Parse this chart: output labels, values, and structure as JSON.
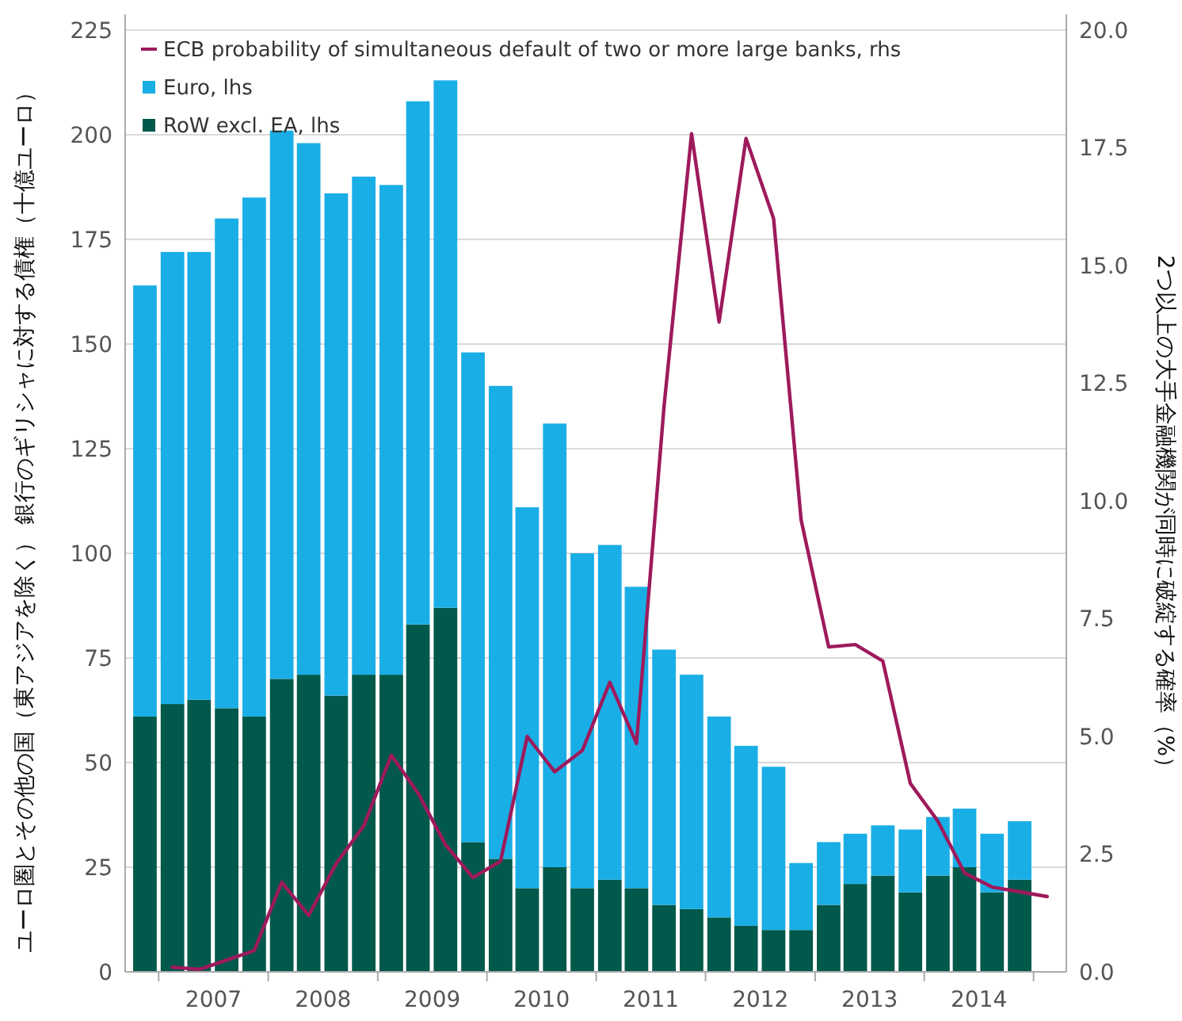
{
  "chart_data": {
    "type": "bar",
    "stacked": true,
    "ylabel": "ユーロ圏とその他の国（東アジアを除く） 銀行のギリシャに対する債権（十億ユーロ）",
    "y2label": "2つ以上の大手金融機関が同時に破綻する確率（%）",
    "x": [
      "2006-11-15",
      "2007-02-15",
      "2007-05-15",
      "2007-08-15",
      "2007-11-15",
      "2008-02-15",
      "2008-05-15",
      "2008-08-15",
      "2008-11-15",
      "2009-02-15",
      "2009-05-15",
      "2009-08-15",
      "2009-11-15",
      "2010-02-15",
      "2010-05-15",
      "2010-08-15",
      "2010-11-15",
      "2011-02-15",
      "2011-05-15",
      "2011-08-15",
      "2011-11-15",
      "2012-02-15",
      "2012-05-15",
      "2012-08-15",
      "2012-11-15",
      "2013-02-15",
      "2013-05-15",
      "2013-08-15",
      "2013-11-15",
      "2014-02-15",
      "2014-05-15",
      "2014-08-15",
      "2014-11-15"
    ],
    "xlim": [
      "2006-09-10",
      "2015-04-20"
    ],
    "xticks": [
      {
        "value": "2007-07-02",
        "label": "2007"
      },
      {
        "value": "2008-07-02",
        "label": "2008"
      },
      {
        "value": "2009-07-02",
        "label": "2009"
      },
      {
        "value": "2010-07-02",
        "label": "2010"
      },
      {
        "value": "2011-07-02",
        "label": "2011"
      },
      {
        "value": "2012-07-02",
        "label": "2012"
      },
      {
        "value": "2013-07-02",
        "label": "2013"
      },
      {
        "value": "2014-07-02",
        "label": "2014"
      }
    ],
    "ylim": [
      0,
      225
    ],
    "yticks": [
      0,
      25,
      50,
      75,
      100,
      125,
      150,
      175,
      200,
      225
    ],
    "y2lim": [
      0,
      20
    ],
    "y2ticks": [
      {
        "value": 0,
        "label": "0.0"
      },
      {
        "value": 2.5,
        "label": "2.5"
      },
      {
        "value": 5,
        "label": "5.0"
      },
      {
        "value": 7.5,
        "label": "7.5"
      },
      {
        "value": 10,
        "label": "10.0"
      },
      {
        "value": 12.5,
        "label": "12.5"
      },
      {
        "value": 15,
        "label": "15.0"
      },
      {
        "value": 17.5,
        "label": "17.5"
      },
      {
        "value": 20,
        "label": "20.0"
      }
    ],
    "grid": "y",
    "legend": "top left",
    "series": [
      {
        "name": "ECB probability of simultaneous default of two or more large banks, rhs",
        "type": "line",
        "axis": "y2",
        "color": "#9e1a5c",
        "x": [
          "2007-02-15",
          "2007-05-15",
          "2007-08-15",
          "2007-11-15",
          "2008-02-15",
          "2008-05-15",
          "2008-08-15",
          "2008-11-15",
          "2009-02-15",
          "2009-05-15",
          "2009-08-15",
          "2009-11-15",
          "2010-02-15",
          "2010-05-15",
          "2010-08-15",
          "2010-11-15",
          "2011-02-15",
          "2011-05-15",
          "2011-08-15",
          "2011-11-15",
          "2012-02-15",
          "2012-05-15",
          "2012-08-15",
          "2012-11-15",
          "2013-02-15",
          "2013-05-15",
          "2013-08-15",
          "2013-11-15",
          "2014-02-15",
          "2014-05-15",
          "2014-08-15",
          "2014-11-15",
          "2015-02-15"
        ],
        "values": [
          0.1,
          0.05,
          0.25,
          0.45,
          1.9,
          1.2,
          2.3,
          3.1,
          4.6,
          3.8,
          2.7,
          2.0,
          2.35,
          5.0,
          4.25,
          4.7,
          6.15,
          4.85,
          12.0,
          17.8,
          13.8,
          17.7,
          16.0,
          9.6,
          6.9,
          6.95,
          6.6,
          4.0,
          3.2,
          2.1,
          1.8,
          1.7,
          1.6
        ]
      },
      {
        "name": "RoW excl. EA, lhs",
        "color": "#00594a",
        "values": [
          61,
          64,
          65,
          63,
          61,
          70,
          71,
          66,
          71,
          71,
          83,
          87,
          31,
          27,
          20,
          25,
          20,
          22,
          20,
          16,
          15,
          13,
          11,
          10,
          10,
          16,
          21,
          23,
          19,
          23,
          25,
          19,
          22
        ]
      },
      {
        "name": "Euro, lhs",
        "color": "#1aaee6",
        "values": [
          103,
          108,
          107,
          117,
          124,
          131,
          127,
          120,
          119,
          117,
          125,
          126,
          117,
          113,
          91,
          106,
          80,
          80,
          72,
          61,
          56,
          48,
          43,
          39,
          16,
          15,
          12,
          12,
          15,
          14,
          14,
          14,
          14
        ]
      }
    ]
  }
}
